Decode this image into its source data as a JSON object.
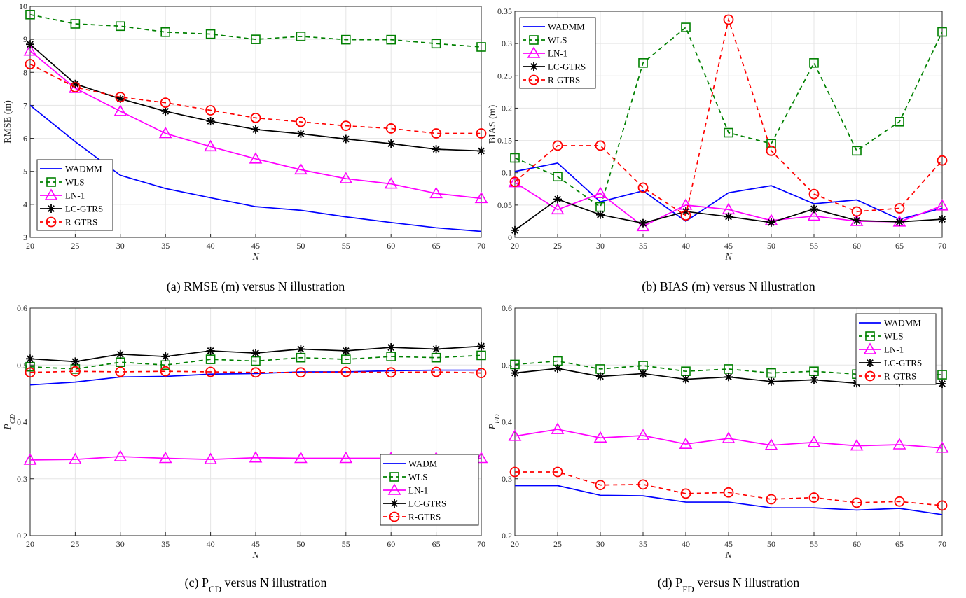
{
  "markers": {
    "WADMM": "none",
    "WADM": "none",
    "WLS": "square",
    "LN-1": "triangle",
    "LC-GTRS": "asterisk",
    "R-GTRS": "circle"
  },
  "colors": {
    "WADMM": "#0000ff",
    "WADM": "#0000ff",
    "WLS": "#008000",
    "LN-1": "#ff00ff",
    "LC-GTRS": "#000000",
    "R-GTRS": "#ff0000",
    "grid": "#e5e5e5",
    "axis": "#262626"
  },
  "dashed": {
    "WADMM": false,
    "WADM": false,
    "WLS": true,
    "LN-1": false,
    "LC-GTRS": false,
    "R-GTRS": true
  },
  "chart_data": [
    {
      "type": "line",
      "caption": "(a) RMSE (m) versus N illustration",
      "xlabel": "N",
      "ylabel": "RMSE (m)",
      "x": [
        20,
        25,
        30,
        35,
        40,
        45,
        50,
        55,
        60,
        65,
        70
      ],
      "xlim": [
        20,
        70
      ],
      "ylim": [
        3,
        10
      ],
      "xticks": [
        "20",
        "25",
        "30",
        "35",
        "40",
        "45",
        "50",
        "55",
        "60",
        "65",
        "70"
      ],
      "yticks": [
        "3",
        "4",
        "5",
        "6",
        "7",
        "8",
        "9",
        "10"
      ],
      "grid": true,
      "legend_position": "bottom-left",
      "series": [
        {
          "name": "WADMM",
          "values": [
            7.0,
            5.9,
            4.88,
            4.48,
            4.2,
            3.93,
            3.82,
            3.62,
            3.45,
            3.29,
            3.18
          ]
        },
        {
          "name": "WLS",
          "values": [
            9.75,
            9.47,
            9.4,
            9.22,
            9.16,
            9.0,
            9.09,
            8.99,
            8.99,
            8.87,
            8.77
          ]
        },
        {
          "name": "LN-1",
          "values": [
            8.65,
            7.52,
            6.82,
            6.15,
            5.75,
            5.38,
            5.05,
            4.78,
            4.62,
            4.33,
            4.18
          ]
        },
        {
          "name": "LC-GTRS",
          "values": [
            8.85,
            7.65,
            7.2,
            6.82,
            6.52,
            6.27,
            6.14,
            5.98,
            5.84,
            5.67,
            5.62
          ]
        },
        {
          "name": "R-GTRS",
          "values": [
            8.25,
            7.55,
            7.25,
            7.08,
            6.85,
            6.62,
            6.5,
            6.38,
            6.3,
            6.15,
            6.15
          ]
        }
      ]
    },
    {
      "type": "line",
      "caption": "(b) BIAS (m) versus N illustration",
      "xlabel": "N",
      "ylabel": "BIAS (m)",
      "x": [
        20,
        25,
        30,
        35,
        40,
        45,
        50,
        55,
        60,
        65,
        70
      ],
      "xlim": [
        20,
        70
      ],
      "ylim": [
        0,
        0.35
      ],
      "xticks": [
        "20",
        "25",
        "30",
        "35",
        "40",
        "45",
        "50",
        "55",
        "60",
        "65",
        "70"
      ],
      "yticks": [
        "0",
        "0.05",
        "0.1",
        "0.15",
        "0.2",
        "0.25",
        "0.3",
        "0.35"
      ],
      "grid": true,
      "legend_position": "top-left",
      "series": [
        {
          "name": "WADMM",
          "values": [
            0.102,
            0.115,
            0.055,
            0.072,
            0.025,
            0.069,
            0.08,
            0.052,
            0.058,
            0.028,
            0.045
          ]
        },
        {
          "name": "WLS",
          "values": [
            0.123,
            0.094,
            0.047,
            0.27,
            0.325,
            0.162,
            0.145,
            0.27,
            0.134,
            0.179,
            0.318
          ]
        },
        {
          "name": "LN-1",
          "values": [
            0.085,
            0.043,
            0.068,
            0.017,
            0.05,
            0.043,
            0.026,
            0.033,
            0.025,
            0.024,
            0.049
          ]
        },
        {
          "name": "LC-GTRS",
          "values": [
            0.011,
            0.059,
            0.035,
            0.022,
            0.04,
            0.032,
            0.023,
            0.044,
            0.026,
            0.024,
            0.028
          ]
        },
        {
          "name": "R-GTRS",
          "values": [
            0.086,
            0.142,
            0.142,
            0.077,
            0.034,
            0.337,
            0.134,
            0.067,
            0.04,
            0.045,
            0.119
          ]
        }
      ]
    },
    {
      "type": "line",
      "caption": "(c) P_CD versus N illustration",
      "xlabel": "N",
      "ylabel": "P_CD",
      "x": [
        20,
        25,
        30,
        35,
        40,
        45,
        50,
        55,
        60,
        65,
        70
      ],
      "xlim": [
        20,
        70
      ],
      "ylim": [
        0.2,
        0.6
      ],
      "xticks": [
        "20",
        "25",
        "30",
        "35",
        "40",
        "45",
        "50",
        "55",
        "60",
        "65",
        "70"
      ],
      "yticks": [
        "0.2",
        "0.3",
        "0.4",
        "0.5",
        "0.6"
      ],
      "grid": true,
      "legend_position": "bottom-right",
      "series": [
        {
          "name": "WADM",
          "values": [
            0.465,
            0.47,
            0.479,
            0.48,
            0.484,
            0.485,
            0.488,
            0.488,
            0.49,
            0.491,
            0.491
          ]
        },
        {
          "name": "WLS",
          "values": [
            0.497,
            0.493,
            0.505,
            0.5,
            0.51,
            0.507,
            0.513,
            0.51,
            0.515,
            0.513,
            0.517
          ]
        },
        {
          "name": "LN-1",
          "values": [
            0.333,
            0.334,
            0.339,
            0.336,
            0.334,
            0.337,
            0.336,
            0.336,
            0.336,
            0.336,
            0.336
          ]
        },
        {
          "name": "LC-GTRS",
          "values": [
            0.511,
            0.506,
            0.519,
            0.515,
            0.525,
            0.521,
            0.528,
            0.525,
            0.531,
            0.528,
            0.533
          ]
        },
        {
          "name": "R-GTRS",
          "values": [
            0.487,
            0.489,
            0.488,
            0.489,
            0.488,
            0.487,
            0.487,
            0.488,
            0.487,
            0.488,
            0.486
          ]
        }
      ]
    },
    {
      "type": "line",
      "caption": "(d) P_FD versus N illustration",
      "xlabel": "N",
      "ylabel": "P_FD",
      "x": [
        20,
        25,
        30,
        35,
        40,
        45,
        50,
        55,
        60,
        65,
        70
      ],
      "xlim": [
        20,
        70
      ],
      "ylim": [
        0.2,
        0.6
      ],
      "xticks": [
        "20",
        "25",
        "30",
        "35",
        "40",
        "45",
        "50",
        "55",
        "60",
        "65",
        "70"
      ],
      "yticks": [
        "0.2",
        "0.3",
        "0.4",
        "0.5",
        "0.6"
      ],
      "grid": true,
      "legend_position": "top-right",
      "series": [
        {
          "name": "WADMM",
          "values": [
            0.288,
            0.288,
            0.271,
            0.27,
            0.259,
            0.259,
            0.249,
            0.249,
            0.245,
            0.248,
            0.237
          ]
        },
        {
          "name": "WLS",
          "values": [
            0.501,
            0.507,
            0.493,
            0.499,
            0.489,
            0.493,
            0.486,
            0.489,
            0.484,
            0.484,
            0.483
          ]
        },
        {
          "name": "LN-1",
          "values": [
            0.375,
            0.387,
            0.372,
            0.376,
            0.361,
            0.371,
            0.359,
            0.364,
            0.358,
            0.36,
            0.354
          ]
        },
        {
          "name": "LC-GTRS",
          "values": [
            0.486,
            0.494,
            0.48,
            0.485,
            0.475,
            0.479,
            0.471,
            0.474,
            0.468,
            0.47,
            0.467
          ]
        },
        {
          "name": "R-GTRS",
          "values": [
            0.312,
            0.312,
            0.289,
            0.29,
            0.274,
            0.276,
            0.264,
            0.267,
            0.258,
            0.26,
            0.253
          ]
        }
      ]
    }
  ]
}
